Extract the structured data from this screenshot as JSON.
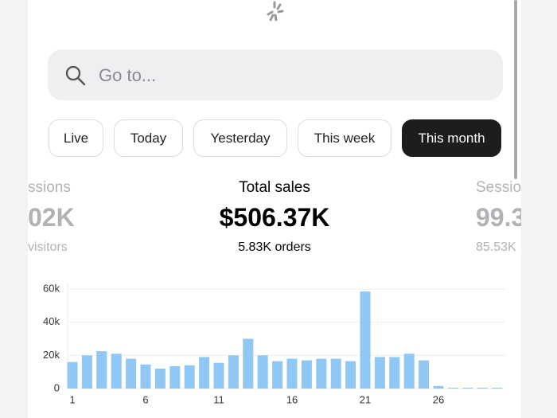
{
  "search": {
    "placeholder": "Go to..."
  },
  "filters": [
    "Live",
    "Today",
    "Yesterday",
    "This week",
    "This month"
  ],
  "stats": {
    "left": {
      "label": "ssions",
      "value": "02K",
      "sub": "visitors"
    },
    "center": {
      "label": "Total sales",
      "value": "$506.37K",
      "sub": "5.83K orders"
    },
    "right": {
      "label": "Sessio",
      "value": "99.3",
      "sub": "85.53K"
    }
  },
  "chart_data": {
    "type": "bar",
    "color": "#90c8f5",
    "grid": true,
    "categories": [
      "1",
      null,
      null,
      null,
      null,
      "6",
      null,
      null,
      null,
      null,
      "11",
      null,
      null,
      null,
      null,
      "16",
      null,
      null,
      null,
      null,
      "21",
      null,
      null,
      null,
      null,
      "26",
      null,
      null,
      null,
      null
    ],
    "values": [
      16000,
      20000,
      22500,
      21000,
      18000,
      14500,
      12000,
      13500,
      14000,
      19000,
      15500,
      20000,
      30000,
      20000,
      16500,
      18000,
      17000,
      18000,
      18000,
      16500,
      58500,
      19000,
      19000,
      21000,
      17000,
      1500,
      500,
      500,
      500,
      500
    ],
    "ylim": [
      0,
      60000
    ],
    "yticks": [
      {
        "value": 0,
        "label": "0"
      },
      {
        "value": 20000,
        "label": "20k"
      },
      {
        "value": 40000,
        "label": "40k"
      },
      {
        "value": 60000,
        "label": "60k"
      }
    ]
  }
}
